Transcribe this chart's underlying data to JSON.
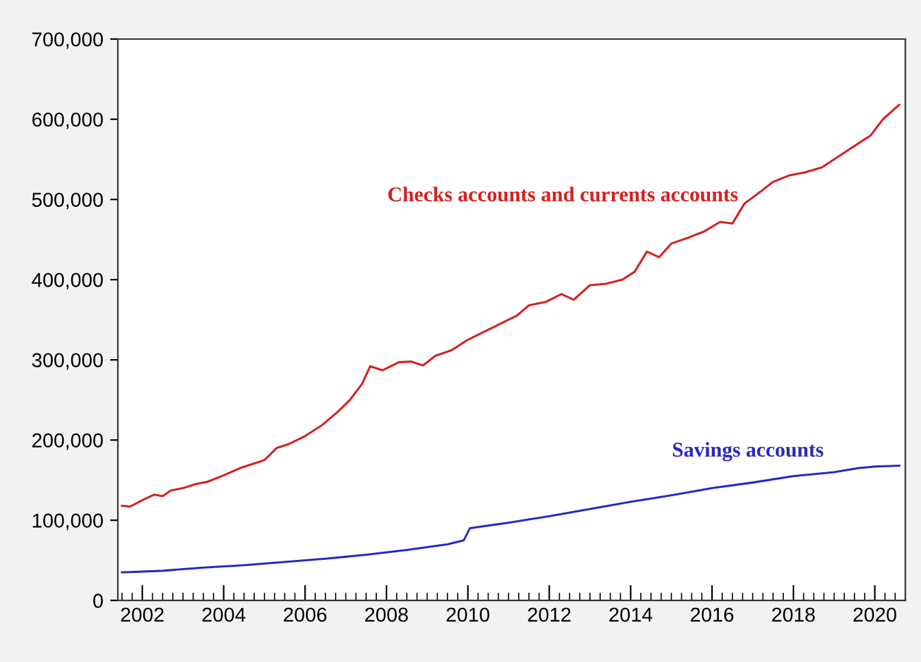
{
  "chart_data": {
    "type": "line",
    "xlim": [
      2001.4,
      2020.75
    ],
    "ylim": [
      0,
      700000
    ],
    "xticks": [
      2002,
      2004,
      2006,
      2008,
      2010,
      2012,
      2014,
      2016,
      2018,
      2020
    ],
    "yticks": [
      {
        "value": 0,
        "label": "0"
      },
      {
        "value": 100000,
        "label": "100,000"
      },
      {
        "value": 200000,
        "label": "200,000"
      },
      {
        "value": 300000,
        "label": "300,000"
      },
      {
        "value": 400000,
        "label": "400,000"
      },
      {
        "value": 500000,
        "label": "500,000"
      },
      {
        "value": 600000,
        "label": "600,000"
      },
      {
        "value": 700000,
        "label": "700,000"
      }
    ],
    "grid": false,
    "legend": false,
    "marker": "none",
    "line_style": "solid",
    "series": [
      {
        "name": "Checks accounts and currents accounts",
        "color": "#d42020",
        "x": [
          2001.5,
          2001.7,
          2002.0,
          2002.3,
          2002.5,
          2002.7,
          2003.0,
          2003.3,
          2003.6,
          2004.0,
          2004.4,
          2004.7,
          2005.0,
          2005.3,
          2005.6,
          2006.0,
          2006.4,
          2006.8,
          2007.1,
          2007.4,
          2007.6,
          2007.9,
          2008.3,
          2008.6,
          2008.9,
          2009.2,
          2009.6,
          2010.0,
          2010.4,
          2010.8,
          2011.2,
          2011.5,
          2011.9,
          2012.3,
          2012.6,
          2013.0,
          2013.4,
          2013.8,
          2014.1,
          2014.4,
          2014.7,
          2015.0,
          2015.4,
          2015.8,
          2016.2,
          2016.5,
          2016.8,
          2017.2,
          2017.5,
          2017.9,
          2018.3,
          2018.7,
          2019.0,
          2019.3,
          2019.6,
          2019.9,
          2020.2,
          2020.6
        ],
        "values": [
          118000,
          117000,
          125000,
          132000,
          130000,
          137000,
          140000,
          145000,
          148000,
          156000,
          165000,
          170000,
          175000,
          190000,
          195000,
          205000,
          218000,
          235000,
          250000,
          270000,
          292000,
          287000,
          297000,
          298000,
          293000,
          305000,
          312000,
          325000,
          335000,
          345000,
          355000,
          368000,
          372000,
          382000,
          375000,
          393000,
          395000,
          400000,
          410000,
          435000,
          428000,
          445000,
          452000,
          460000,
          472000,
          470000,
          495000,
          510000,
          522000,
          530000,
          534000,
          540000,
          550000,
          560000,
          570000,
          580000,
          600000,
          618000
        ]
      },
      {
        "name": "Savings accounts",
        "color": "#2828c0",
        "x": [
          2001.5,
          2002.5,
          2003.5,
          2004.5,
          2005.5,
          2006.5,
          2007.5,
          2008.5,
          2009.5,
          2009.9,
          2010.05,
          2011.0,
          2012.0,
          2013.0,
          2014.0,
          2015.0,
          2016.0,
          2017.0,
          2018.0,
          2019.0,
          2019.6,
          2020.0,
          2020.6
        ],
        "values": [
          35000,
          37000,
          41000,
          44000,
          48000,
          52000,
          57000,
          63000,
          70000,
          75000,
          90000,
          97000,
          105000,
          114000,
          123000,
          131000,
          140000,
          147000,
          155000,
          160000,
          165000,
          167000,
          168000
        ]
      }
    ]
  }
}
